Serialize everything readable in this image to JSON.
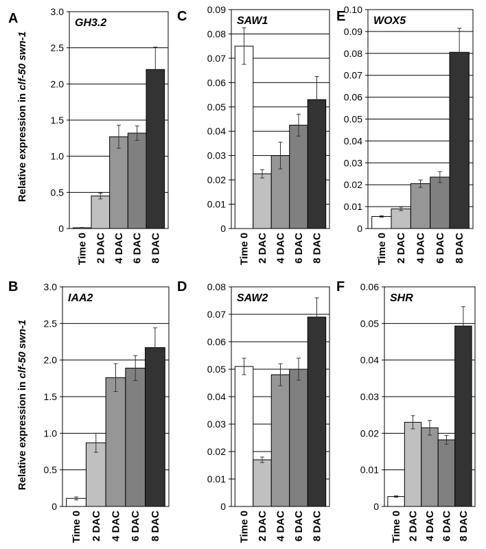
{
  "figure": {
    "ylabel_prefix": "Relative expression in ",
    "ylabel_genotype": "clf-50 swn-1"
  },
  "colors": {
    "bars": [
      "#ffffff",
      "#c0c0c0",
      "#969696",
      "#808080",
      "#333333"
    ],
    "outline": "#000000",
    "grid": "#000000"
  },
  "chart_data": [
    {
      "panel": "A",
      "gene": "GH3.2",
      "type": "bar",
      "categories": [
        "Time 0",
        "2 DAC",
        "4 DAC",
        "6 DAC",
        "8 DAC"
      ],
      "values": [
        0.01,
        0.45,
        1.27,
        1.32,
        2.2
      ],
      "errors": [
        0.005,
        0.04,
        0.16,
        0.1,
        0.31
      ],
      "ylim": [
        0,
        3.0
      ],
      "yticks": [
        "0",
        "0.5",
        "1.0",
        "1.5",
        "2.0",
        "2.5",
        "3.0"
      ],
      "ytick_values": [
        0,
        0.5,
        1.0,
        1.5,
        2.0,
        2.5,
        3.0
      ],
      "grid": true
    },
    {
      "panel": "C",
      "gene": "SAW1",
      "type": "bar",
      "categories": [
        "Time 0",
        "2 DAC",
        "4 DAC",
        "6 DAC",
        "8 DAC"
      ],
      "values": [
        0.075,
        0.0225,
        0.03,
        0.0425,
        0.053
      ],
      "errors": [
        0.0075,
        0.0017,
        0.0055,
        0.0045,
        0.0095
      ],
      "ylim": [
        0,
        0.09
      ],
      "yticks": [
        "0",
        "0.01",
        "0.02",
        "0.03",
        "0.04",
        "0.05",
        "0.06",
        "0.07",
        "0.08",
        "0.09"
      ],
      "ytick_values": [
        0,
        0.01,
        0.02,
        0.03,
        0.04,
        0.05,
        0.06,
        0.07,
        0.08,
        0.09
      ],
      "grid": true
    },
    {
      "panel": "E",
      "gene": "WOX5",
      "type": "bar",
      "categories": [
        "Time 0",
        "2 DAC",
        "4 DAC",
        "6 DAC",
        "8 DAC"
      ],
      "values": [
        0.0055,
        0.009,
        0.0205,
        0.0235,
        0.0805
      ],
      "errors": [
        0.0003,
        0.0008,
        0.0017,
        0.0025,
        0.011
      ],
      "ylim": [
        0,
        0.1
      ],
      "yticks": [
        "0",
        "0.01",
        "0.02",
        "0.03",
        "0.04",
        "0.05",
        "0.06",
        "0.07",
        "0.08",
        "0.09",
        "0.10"
      ],
      "ytick_values": [
        0,
        0.01,
        0.02,
        0.03,
        0.04,
        0.05,
        0.06,
        0.07,
        0.08,
        0.09,
        0.1
      ],
      "grid": true
    },
    {
      "panel": "B",
      "gene": "IAA2",
      "type": "bar",
      "categories": [
        "Time 0",
        "2 DAC",
        "4 DAC",
        "6 DAC",
        "8 DAC"
      ],
      "values": [
        0.11,
        0.87,
        1.76,
        1.89,
        2.17
      ],
      "errors": [
        0.02,
        0.13,
        0.19,
        0.17,
        0.27
      ],
      "ylim": [
        0,
        3.0
      ],
      "yticks": [
        "0",
        "0.5",
        "1.0",
        "1.5",
        "2.0",
        "2.5",
        "3.0"
      ],
      "ytick_values": [
        0,
        0.5,
        1.0,
        1.5,
        2.0,
        2.5,
        3.0
      ],
      "grid": true
    },
    {
      "panel": "D",
      "gene": "SAW2",
      "type": "bar",
      "categories": [
        "Time 0",
        "2 DAC",
        "4 DAC",
        "6 DAC",
        "8 DAC"
      ],
      "values": [
        0.051,
        0.017,
        0.048,
        0.05,
        0.069
      ],
      "errors": [
        0.003,
        0.001,
        0.004,
        0.004,
        0.007
      ],
      "ylim": [
        0,
        0.08
      ],
      "yticks": [
        "0",
        "0.01",
        "0.02",
        "0.03",
        "0.04",
        "0.05",
        "0.06",
        "0.07",
        "0.08"
      ],
      "ytick_values": [
        0,
        0.01,
        0.02,
        0.03,
        0.04,
        0.05,
        0.06,
        0.07,
        0.08
      ],
      "grid": true
    },
    {
      "panel": "F",
      "gene": "SHR",
      "type": "bar",
      "categories": [
        "Time 0",
        "2 DAC",
        "4 DAC",
        "6 DAC",
        "8 DAC"
      ],
      "values": [
        0.0027,
        0.023,
        0.0215,
        0.0182,
        0.0493
      ],
      "errors": [
        0.0002,
        0.0018,
        0.002,
        0.0012,
        0.0053
      ],
      "ylim": [
        0,
        0.06
      ],
      "yticks": [
        "0",
        "0.01",
        "0.02",
        "0.03",
        "0.04",
        "0.05",
        "0.06"
      ],
      "ytick_values": [
        0,
        0.01,
        0.02,
        0.03,
        0.04,
        0.05,
        0.06
      ],
      "grid": true
    }
  ]
}
